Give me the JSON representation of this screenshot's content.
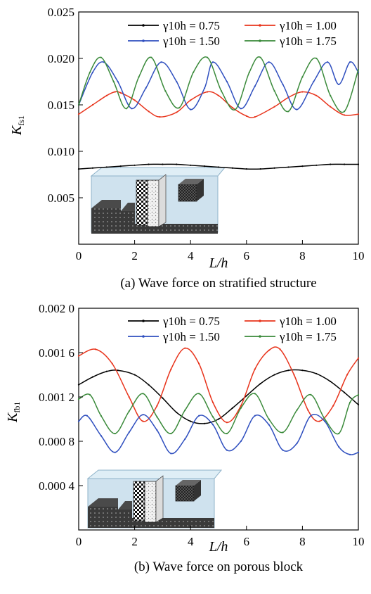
{
  "panels": [
    {
      "caption": "(a) Wave force on stratified structure",
      "chart_data": {
        "type": "line",
        "xlabel": "L/h",
        "ylabel_main": "K",
        "ylabel_sub": "fs1",
        "xlim": [
          0,
          10
        ],
        "ylim": [
          0,
          0.025
        ],
        "xticks": [
          0,
          2,
          4,
          6,
          8,
          10
        ],
        "yticks": [
          0.005,
          0.01,
          0.015,
          0.02,
          0.025
        ],
        "ytick_labels": [
          "0.005",
          "0.010",
          "0.015",
          "0.020",
          "0.025"
        ],
        "legend_position": "top-right",
        "series": [
          {
            "name": "γ10h = 0.75",
            "color": "#000000",
            "x": [
              0,
              0.5,
              1,
              1.5,
              2,
              2.5,
              3,
              3.5,
              4,
              4.5,
              5,
              5.5,
              6,
              6.5,
              7,
              7.5,
              8,
              8.5,
              9,
              9.5,
              10
            ],
            "y": [
              0.0081,
              0.0082,
              0.0083,
              0.0084,
              0.0085,
              0.0086,
              0.0086,
              0.0086,
              0.0085,
              0.0084,
              0.0083,
              0.0082,
              0.0081,
              0.0081,
              0.0082,
              0.0083,
              0.0084,
              0.0085,
              0.0086,
              0.0086,
              0.0086
            ]
          },
          {
            "name": "γ10h = 1.00",
            "color": "#e8341c",
            "x": [
              0,
              0.5,
              1,
              1.3,
              1.5,
              2,
              2.5,
              2.9,
              3.5,
              4,
              4.6,
              5,
              5.5,
              6,
              6.3,
              7,
              7.5,
              8,
              8.5,
              9,
              9.5,
              10
            ],
            "y": [
              0.014,
              0.015,
              0.016,
              0.0164,
              0.0163,
              0.0155,
              0.0143,
              0.0137,
              0.0142,
              0.0155,
              0.0164,
              0.016,
              0.0147,
              0.0138,
              0.0137,
              0.0148,
              0.0158,
              0.0164,
              0.016,
              0.0148,
              0.0139,
              0.014
            ]
          },
          {
            "name": "γ10h = 1.50",
            "color": "#2f4fbf",
            "x": [
              0,
              0.5,
              0.9,
              1.4,
              1.9,
              2.4,
              2.95,
              3.5,
              4.0,
              4.5,
              4.8,
              5.3,
              5.8,
              6.3,
              6.8,
              7.3,
              7.8,
              8.4,
              8.9,
              9.3,
              9.7,
              10
            ],
            "y": [
              0.015,
              0.0185,
              0.0196,
              0.0175,
              0.0146,
              0.0168,
              0.0196,
              0.0175,
              0.0145,
              0.0168,
              0.0196,
              0.0175,
              0.0146,
              0.017,
              0.0196,
              0.0172,
              0.0145,
              0.0175,
              0.0196,
              0.0172,
              0.0196,
              0.0185
            ]
          },
          {
            "name": "γ10h = 1.75",
            "color": "#3a8a3a",
            "x": [
              0,
              0.4,
              0.8,
              1.25,
              1.7,
              2.15,
              2.6,
              3.1,
              3.6,
              4.1,
              4.6,
              5.1,
              5.6,
              6.1,
              6.5,
              7.0,
              7.5,
              8.0,
              8.5,
              9.0,
              9.5,
              10
            ],
            "y": [
              0.015,
              0.0185,
              0.0201,
              0.0175,
              0.0146,
              0.018,
              0.0201,
              0.0165,
              0.0147,
              0.0185,
              0.0201,
              0.0165,
              0.0145,
              0.0185,
              0.0201,
              0.0165,
              0.0143,
              0.018,
              0.02,
              0.016,
              0.0143,
              0.0188
            ]
          }
        ]
      }
    },
    {
      "caption": "(b) Wave force on porous block",
      "chart_data": {
        "type": "line",
        "xlabel": "L/h",
        "ylabel_main": "K",
        "ylabel_sub": "fb1",
        "xlim": [
          0,
          10
        ],
        "ylim": [
          0,
          0.002
        ],
        "xticks": [
          0,
          2,
          4,
          6,
          8,
          10
        ],
        "yticks": [
          0.0004,
          0.0008,
          0.0012,
          0.0016,
          0.002
        ],
        "ytick_labels": [
          "0.000 4",
          "0.000 8",
          "0.001 2",
          "0.001 6",
          "0.002 0"
        ],
        "legend_position": "top-right",
        "series": [
          {
            "name": "γ10h = 0.75",
            "color": "#000000",
            "x": [
              0,
              0.5,
              1,
              1.4,
              2,
              2.5,
              3,
              3.5,
              4,
              4.5,
              5,
              5.5,
              6,
              6.5,
              7,
              7.5,
              8,
              8.5,
              9,
              9.5,
              10
            ],
            "y": [
              0.00131,
              0.00138,
              0.00143,
              0.00144,
              0.0014,
              0.00131,
              0.00119,
              0.00106,
              0.00098,
              0.00096,
              0.001,
              0.0011,
              0.00121,
              0.00132,
              0.0014,
              0.00144,
              0.00144,
              0.00141,
              0.00134,
              0.00124,
              0.00113
            ]
          },
          {
            "name": "γ10h = 1.00",
            "color": "#e8341c",
            "x": [
              0,
              0.6,
              1.2,
              1.8,
              2.3,
              2.8,
              3.3,
              3.8,
              4.3,
              4.8,
              5.3,
              5.8,
              6.3,
              6.8,
              7.2,
              7.7,
              8.2,
              8.6,
              9.1,
              9.6,
              10
            ],
            "y": [
              0.00157,
              0.00163,
              0.0015,
              0.0012,
              0.00098,
              0.00112,
              0.00145,
              0.00164,
              0.0015,
              0.00115,
              0.00097,
              0.00112,
              0.00145,
              0.00162,
              0.00163,
              0.0014,
              0.00108,
              0.00098,
              0.00112,
              0.0014,
              0.00155
            ]
          },
          {
            "name": "γ10h = 1.50",
            "color": "#2f4fbf",
            "x": [
              0,
              0.3,
              0.8,
              1.3,
              1.8,
              2.3,
              2.8,
              3.3,
              3.8,
              4.3,
              4.8,
              5.3,
              5.8,
              6.3,
              6.8,
              7.3,
              7.8,
              8.3,
              8.8,
              9.3,
              9.7,
              10
            ],
            "y": [
              0.00098,
              0.00103,
              0.00085,
              0.0007,
              0.00088,
              0.00104,
              0.0009,
              0.00069,
              0.00082,
              0.00103,
              0.00095,
              0.00072,
              0.0008,
              0.00103,
              0.00095,
              0.00072,
              0.00078,
              0.00103,
              0.00098,
              0.00075,
              0.00068,
              0.0007
            ]
          },
          {
            "name": "γ10h = 1.75",
            "color": "#3a8a3a",
            "x": [
              0,
              0.4,
              0.8,
              1.3,
              1.8,
              2.3,
              2.8,
              3.3,
              3.8,
              4.3,
              4.8,
              5.3,
              5.8,
              6.3,
              6.8,
              7.3,
              7.8,
              8.3,
              8.8,
              9.3,
              9.7,
              10
            ],
            "y": [
              0.00118,
              0.00122,
              0.00103,
              0.00087,
              0.00107,
              0.00123,
              0.00102,
              0.00087,
              0.00108,
              0.00123,
              0.00102,
              0.00087,
              0.0011,
              0.00123,
              0.001,
              0.00088,
              0.00108,
              0.00122,
              0.001,
              0.00087,
              0.00115,
              0.00122
            ]
          }
        ]
      }
    }
  ]
}
